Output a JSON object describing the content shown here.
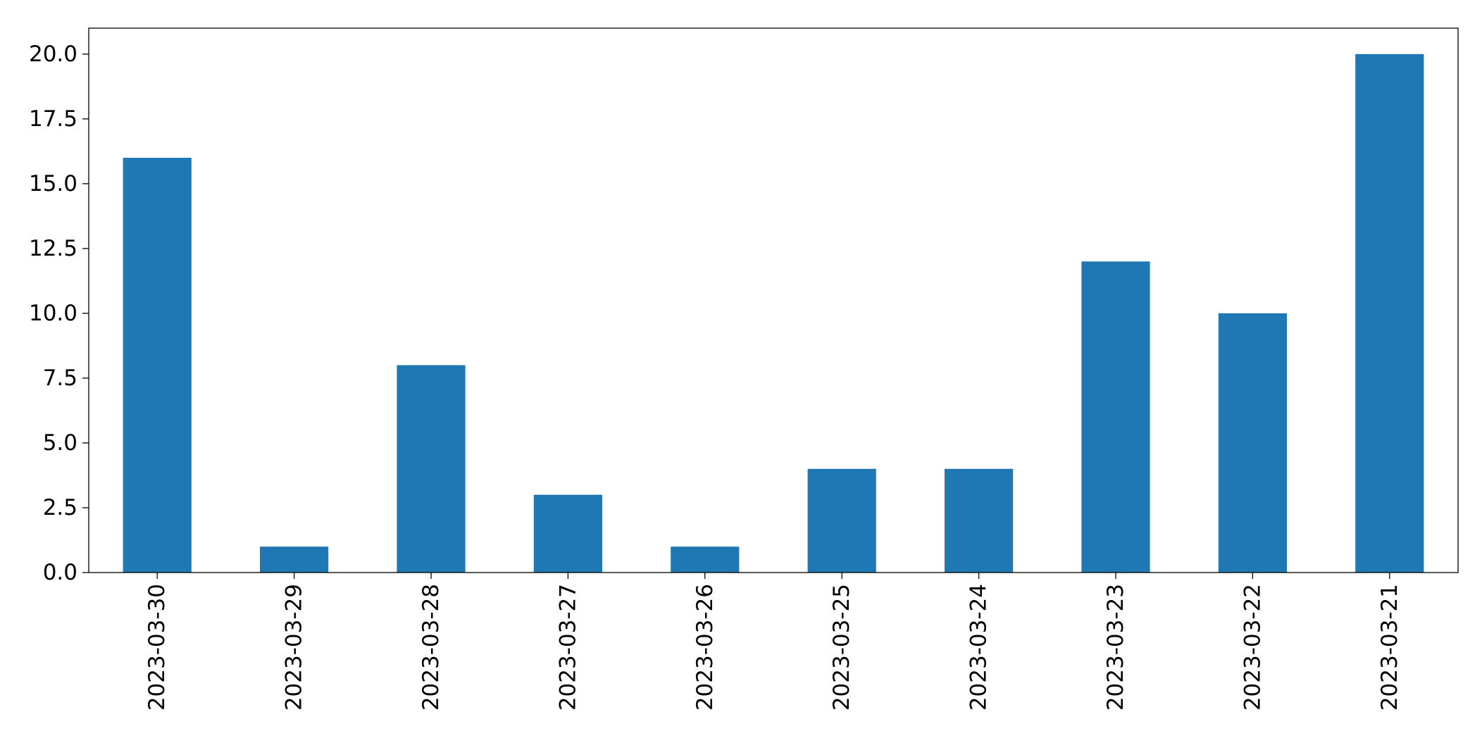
{
  "chart_data": {
    "type": "bar",
    "categories": [
      "2023-03-30",
      "2023-03-29",
      "2023-03-28",
      "2023-03-27",
      "2023-03-26",
      "2023-03-25",
      "2023-03-24",
      "2023-03-23",
      "2023-03-22",
      "2023-03-21"
    ],
    "values": [
      16,
      1,
      8,
      3,
      1,
      4,
      4,
      12,
      10,
      20
    ],
    "title": "",
    "xlabel": "",
    "ylabel": "",
    "ylim": [
      0,
      21
    ],
    "yticks": [
      "0.0",
      "2.5",
      "5.0",
      "7.5",
      "10.0",
      "12.5",
      "15.0",
      "17.5",
      "20.0"
    ],
    "grid": false,
    "legend": "none",
    "bar_color": "#1f77b4",
    "axis_color": "#000000"
  }
}
